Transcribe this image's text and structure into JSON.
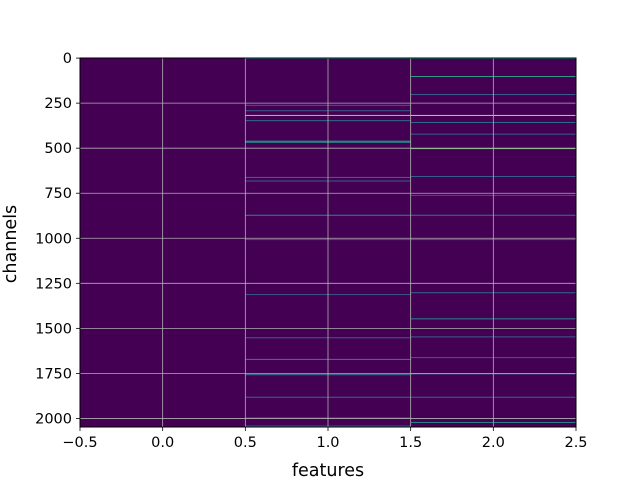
{
  "chart_data": {
    "type": "heatmap",
    "title": "",
    "xlabel": "features",
    "ylabel": "channels",
    "xlim": [
      -0.5,
      2.5
    ],
    "ylim": [
      2047.5,
      -0.5
    ],
    "y_inverted": true,
    "x_ticks": [
      -0.5,
      0.0,
      0.5,
      1.0,
      1.5,
      2.0,
      2.5
    ],
    "x_tick_labels": [
      "−0.5",
      "0.0",
      "0.5",
      "1.0",
      "1.5",
      "2.0",
      "2.5"
    ],
    "y_ticks": [
      0,
      250,
      500,
      750,
      1000,
      1250,
      1500,
      1750,
      2000
    ],
    "y_tick_labels": [
      "0",
      "250",
      "500",
      "750",
      "1000",
      "1250",
      "1500",
      "1750",
      "2000"
    ],
    "grid": true,
    "colormap": "viridis",
    "n_rows": 2048,
    "n_cols": 3,
    "base_color": "#440154",
    "highlight_rows": [
      {
        "col": 1,
        "row": 0,
        "value": 0.35
      },
      {
        "col": 1,
        "row": 260,
        "value": 0.3
      },
      {
        "col": 1,
        "row": 290,
        "value": 0.3
      },
      {
        "col": 1,
        "row": 316,
        "value": 0.85
      },
      {
        "col": 1,
        "row": 345,
        "value": 0.35
      },
      {
        "col": 1,
        "row": 459,
        "value": 0.55
      },
      {
        "col": 1,
        "row": 465,
        "value": 0.5
      },
      {
        "col": 1,
        "row": 660,
        "value": 0.35
      },
      {
        "col": 1,
        "row": 680,
        "value": 0.3
      },
      {
        "col": 1,
        "row": 870,
        "value": 0.45
      },
      {
        "col": 1,
        "row": 1005,
        "value": 0.25
      },
      {
        "col": 1,
        "row": 1310,
        "value": 0.25
      },
      {
        "col": 1,
        "row": 1550,
        "value": 0.3
      },
      {
        "col": 1,
        "row": 1670,
        "value": 0.45
      },
      {
        "col": 1,
        "row": 1755,
        "value": 0.4
      },
      {
        "col": 1,
        "row": 1880,
        "value": 0.35
      },
      {
        "col": 1,
        "row": 1995,
        "value": 0.3
      },
      {
        "col": 1,
        "row": 2040,
        "value": 0.3
      },
      {
        "col": 2,
        "row": 0,
        "value": 0.45
      },
      {
        "col": 2,
        "row": 100,
        "value": 0.55
      },
      {
        "col": 2,
        "row": 200,
        "value": 0.3
      },
      {
        "col": 2,
        "row": 316,
        "value": 0.9
      },
      {
        "col": 2,
        "row": 355,
        "value": 0.35
      },
      {
        "col": 2,
        "row": 420,
        "value": 0.3
      },
      {
        "col": 2,
        "row": 500,
        "value": 0.75
      },
      {
        "col": 2,
        "row": 655,
        "value": 0.3
      },
      {
        "col": 2,
        "row": 760,
        "value": 0.25
      },
      {
        "col": 2,
        "row": 870,
        "value": 0.4
      },
      {
        "col": 2,
        "row": 1005,
        "value": 0.3
      },
      {
        "col": 2,
        "row": 1300,
        "value": 0.35
      },
      {
        "col": 2,
        "row": 1445,
        "value": 0.45
      },
      {
        "col": 2,
        "row": 1545,
        "value": 0.3
      },
      {
        "col": 2,
        "row": 1660,
        "value": 0.3
      },
      {
        "col": 2,
        "row": 1750,
        "value": 0.45
      },
      {
        "col": 2,
        "row": 1880,
        "value": 0.35
      },
      {
        "col": 2,
        "row": 2020,
        "value": 0.45
      }
    ]
  }
}
